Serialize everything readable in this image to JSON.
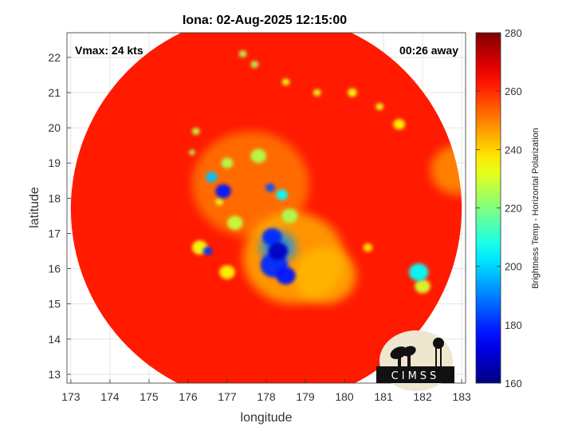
{
  "chart_data": {
    "type": "heatmap",
    "title": "Iona: 02-Aug-2025 12:15:00",
    "xlabel": "longitude",
    "ylabel": "latitude",
    "xlim": [
      172.9,
      183.1
    ],
    "ylim": [
      12.75,
      22.7
    ],
    "xticks": [
      173,
      174,
      175,
      176,
      177,
      178,
      179,
      180,
      181,
      182,
      183
    ],
    "yticks": [
      13,
      14,
      15,
      16,
      17,
      18,
      19,
      20,
      21,
      22
    ],
    "grid": true,
    "annotations": {
      "vmax": "Vmax: 24 kts",
      "away": "00:26 away"
    },
    "colorbar": {
      "label": "Brightness Temp - Horizontal Polarization",
      "range": [
        160,
        280
      ],
      "ticks": [
        160,
        180,
        200,
        220,
        240,
        260,
        280
      ],
      "colormap": "jet"
    },
    "swath": {
      "center": [
        178,
        17.7
      ],
      "radius_deg": 5
    },
    "background_value": 262,
    "features": [
      {
        "lon": 177.6,
        "lat": 18.4,
        "r": 1.5,
        "value": 250
      },
      {
        "lon": 178.7,
        "lat": 16.3,
        "r": 1.3,
        "value": 244
      },
      {
        "lon": 179.5,
        "lat": 15.8,
        "r": 0.8,
        "value": 243
      },
      {
        "lon": 182.9,
        "lat": 18.8,
        "r": 0.7,
        "value": 247
      },
      {
        "lon": 178.3,
        "lat": 16.6,
        "r": 0.45,
        "value": 192
      },
      {
        "lon": 178.2,
        "lat": 16.1,
        "r": 0.35,
        "value": 180
      },
      {
        "lon": 178.3,
        "lat": 16.5,
        "r": 0.25,
        "value": 168
      },
      {
        "lon": 178.15,
        "lat": 16.9,
        "r": 0.25,
        "value": 180
      },
      {
        "lon": 178.5,
        "lat": 15.8,
        "r": 0.25,
        "value": 178
      },
      {
        "lon": 176.9,
        "lat": 18.2,
        "r": 0.2,
        "value": 178
      },
      {
        "lon": 176.6,
        "lat": 18.6,
        "r": 0.15,
        "value": 198
      },
      {
        "lon": 178.1,
        "lat": 18.3,
        "r": 0.12,
        "value": 185
      },
      {
        "lon": 178.4,
        "lat": 18.1,
        "r": 0.15,
        "value": 205
      },
      {
        "lon": 176.5,
        "lat": 16.5,
        "r": 0.12,
        "value": 182
      },
      {
        "lon": 181.9,
        "lat": 15.9,
        "r": 0.25,
        "value": 205
      },
      {
        "lon": 182.0,
        "lat": 15.5,
        "r": 0.2,
        "value": 230
      },
      {
        "lon": 177.2,
        "lat": 17.3,
        "r": 0.2,
        "value": 228
      },
      {
        "lon": 178.6,
        "lat": 17.5,
        "r": 0.2,
        "value": 225
      },
      {
        "lon": 177.8,
        "lat": 19.2,
        "r": 0.2,
        "value": 226
      },
      {
        "lon": 176.2,
        "lat": 19.9,
        "r": 0.1,
        "value": 228
      },
      {
        "lon": 176.1,
        "lat": 19.3,
        "r": 0.08,
        "value": 226
      },
      {
        "lon": 177.0,
        "lat": 19.0,
        "r": 0.15,
        "value": 226
      },
      {
        "lon": 176.8,
        "lat": 17.9,
        "r": 0.1,
        "value": 232
      },
      {
        "lon": 177.4,
        "lat": 22.1,
        "r": 0.1,
        "value": 226
      },
      {
        "lon": 177.7,
        "lat": 21.8,
        "r": 0.1,
        "value": 225
      },
      {
        "lon": 178.5,
        "lat": 21.3,
        "r": 0.1,
        "value": 232
      },
      {
        "lon": 179.3,
        "lat": 21.0,
        "r": 0.1,
        "value": 232
      },
      {
        "lon": 180.2,
        "lat": 21.0,
        "r": 0.12,
        "value": 234
      },
      {
        "lon": 180.9,
        "lat": 20.6,
        "r": 0.1,
        "value": 232
      },
      {
        "lon": 181.4,
        "lat": 20.1,
        "r": 0.15,
        "value": 236
      },
      {
        "lon": 176.3,
        "lat": 16.6,
        "r": 0.2,
        "value": 234
      },
      {
        "lon": 177.0,
        "lat": 15.9,
        "r": 0.2,
        "value": 236
      },
      {
        "lon": 180.6,
        "lat": 16.6,
        "r": 0.12,
        "value": 238
      }
    ]
  },
  "logo": {
    "text": "CIMSS"
  }
}
